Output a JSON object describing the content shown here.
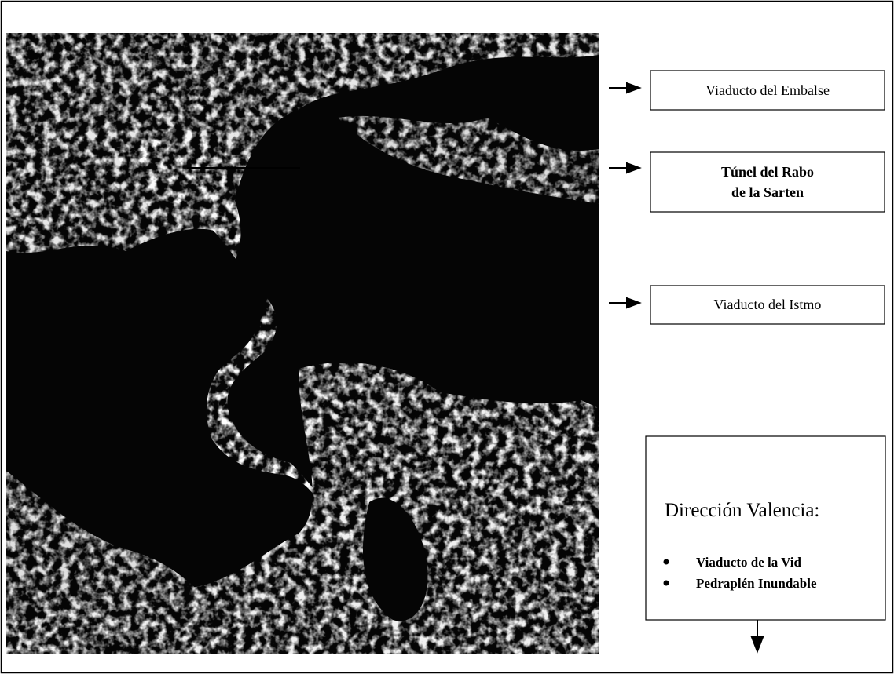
{
  "labels": [
    {
      "lines": [
        "Viaducto del Embalse"
      ]
    },
    {
      "lines": [
        "Túnel del Rabo",
        "de la Sarten"
      ]
    },
    {
      "lines": [
        "Viaducto del Istmo"
      ]
    }
  ],
  "direction_box": {
    "title": "Dirección Valencia:",
    "items": [
      "Viaducto de la Vid",
      "Pedraplén Inundable"
    ]
  }
}
